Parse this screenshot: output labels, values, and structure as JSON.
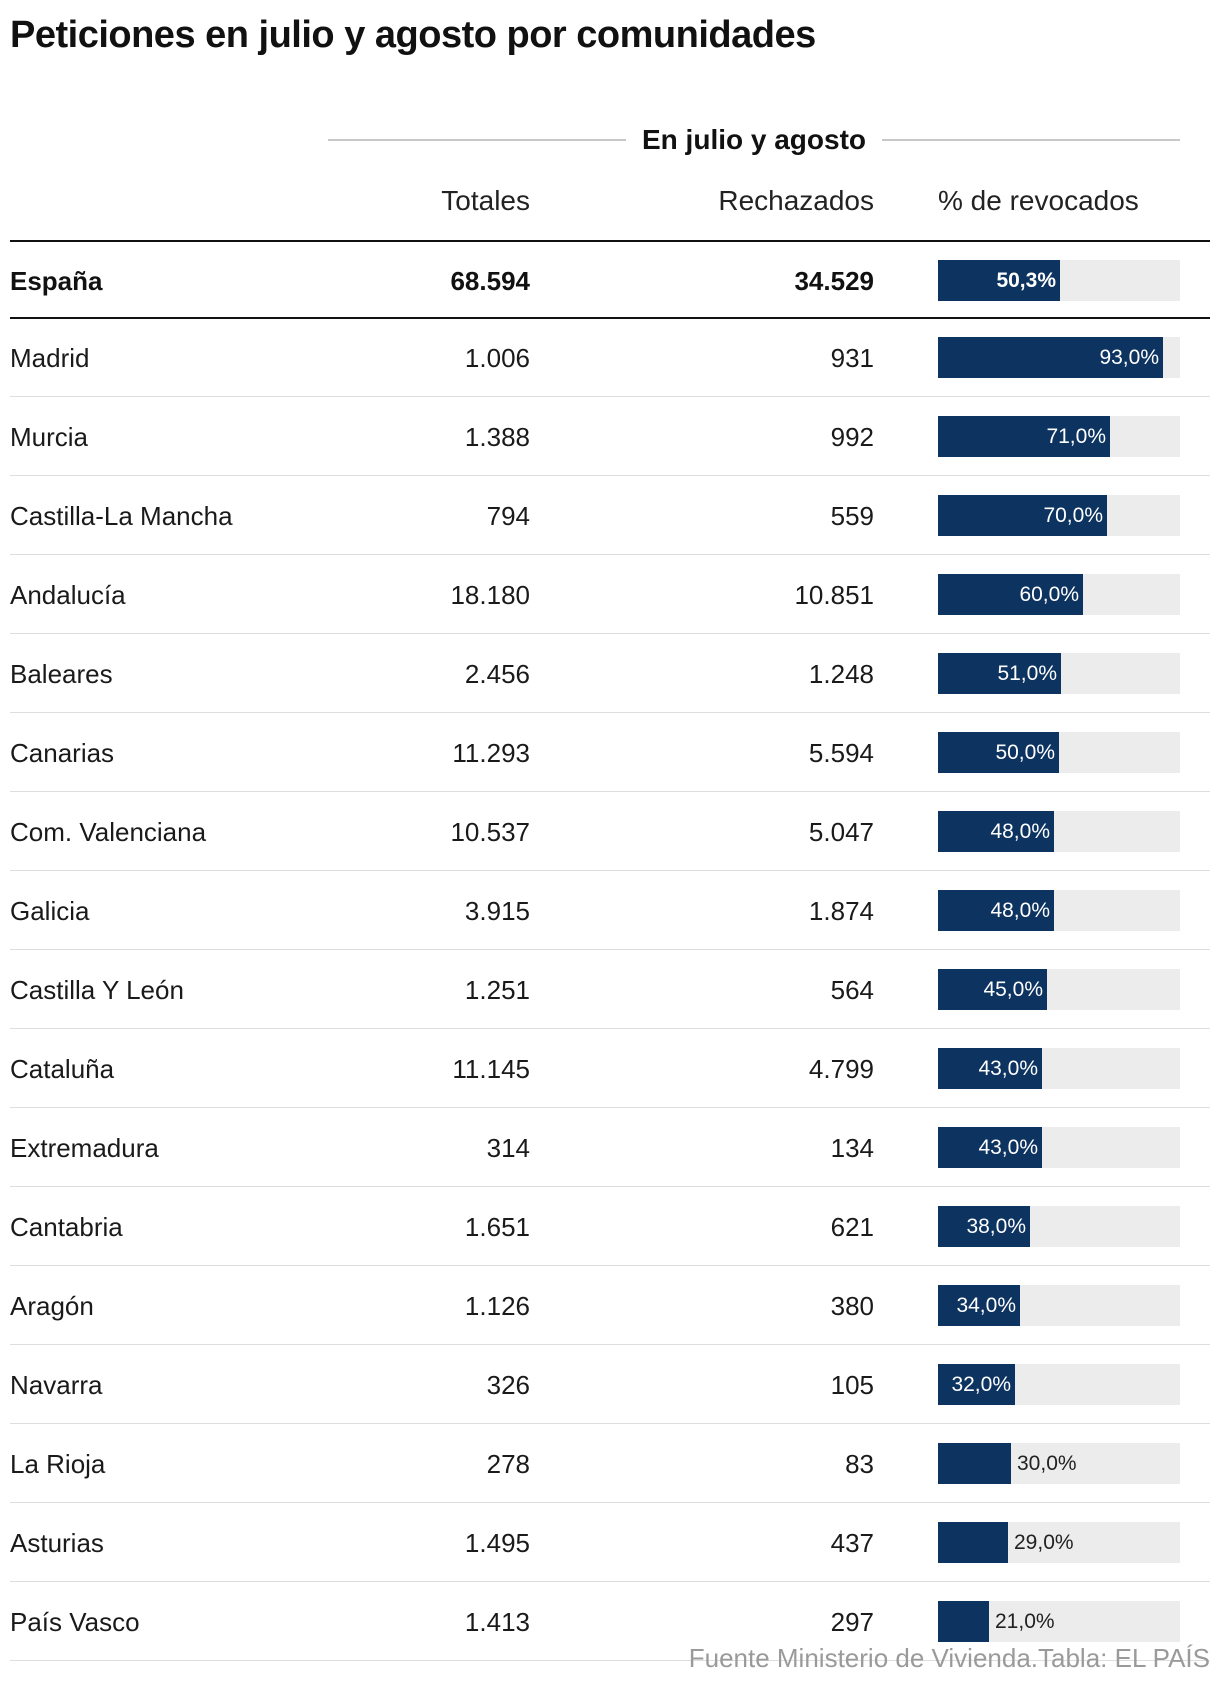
{
  "title": "Peticiones en julio y agosto por comunidades",
  "group_header": "En julio y agosto",
  "columns": {
    "totales": "Totales",
    "rechazados": "Rechazados",
    "revocados": "% de revocados"
  },
  "source": "Fuente Ministerio de Vivienda.Tabla: EL PAÍS",
  "colors": {
    "bar": "#0d3360",
    "track": "#ececec"
  },
  "chart_data": {
    "type": "table",
    "total": {
      "name": "España",
      "totales": "68.594",
      "rechazados": "34.529",
      "pct": 50.3,
      "pct_label": "50,3%"
    },
    "rows": [
      {
        "name": "Madrid",
        "totales": "1.006",
        "rechazados": "931",
        "pct": 93.0,
        "pct_label": "93,0%"
      },
      {
        "name": "Murcia",
        "totales": "1.388",
        "rechazados": "992",
        "pct": 71.0,
        "pct_label": "71,0%"
      },
      {
        "name": "Castilla-La Mancha",
        "totales": "794",
        "rechazados": "559",
        "pct": 70.0,
        "pct_label": "70,0%"
      },
      {
        "name": "Andalucía",
        "totales": "18.180",
        "rechazados": "10.851",
        "pct": 60.0,
        "pct_label": "60,0%"
      },
      {
        "name": "Baleares",
        "totales": "2.456",
        "rechazados": "1.248",
        "pct": 51.0,
        "pct_label": "51,0%"
      },
      {
        "name": "Canarias",
        "totales": "11.293",
        "rechazados": "5.594",
        "pct": 50.0,
        "pct_label": "50,0%"
      },
      {
        "name": "Com. Valenciana",
        "totales": "10.537",
        "rechazados": "5.047",
        "pct": 48.0,
        "pct_label": "48,0%"
      },
      {
        "name": "Galicia",
        "totales": "3.915",
        "rechazados": "1.874",
        "pct": 48.0,
        "pct_label": "48,0%"
      },
      {
        "name": "Castilla Y León",
        "totales": "1.251",
        "rechazados": "564",
        "pct": 45.0,
        "pct_label": "45,0%"
      },
      {
        "name": "Cataluña",
        "totales": "11.145",
        "rechazados": "4.799",
        "pct": 43.0,
        "pct_label": "43,0%"
      },
      {
        "name": "Extremadura",
        "totales": "314",
        "rechazados": "134",
        "pct": 43.0,
        "pct_label": "43,0%"
      },
      {
        "name": "Cantabria",
        "totales": "1.651",
        "rechazados": "621",
        "pct": 38.0,
        "pct_label": "38,0%"
      },
      {
        "name": "Aragón",
        "totales": "1.126",
        "rechazados": "380",
        "pct": 34.0,
        "pct_label": "34,0%"
      },
      {
        "name": "Navarra",
        "totales": "326",
        "rechazados": "105",
        "pct": 32.0,
        "pct_label": "32,0%"
      },
      {
        "name": "La Rioja",
        "totales": "278",
        "rechazados": "83",
        "pct": 30.0,
        "pct_label": "30,0%"
      },
      {
        "name": "Asturias",
        "totales": "1.495",
        "rechazados": "437",
        "pct": 29.0,
        "pct_label": "29,0%"
      },
      {
        "name": "País Vasco",
        "totales": "1.413",
        "rechazados": "297",
        "pct": 21.0,
        "pct_label": "21,0%"
      }
    ],
    "pct_range": [
      0,
      100
    ]
  }
}
